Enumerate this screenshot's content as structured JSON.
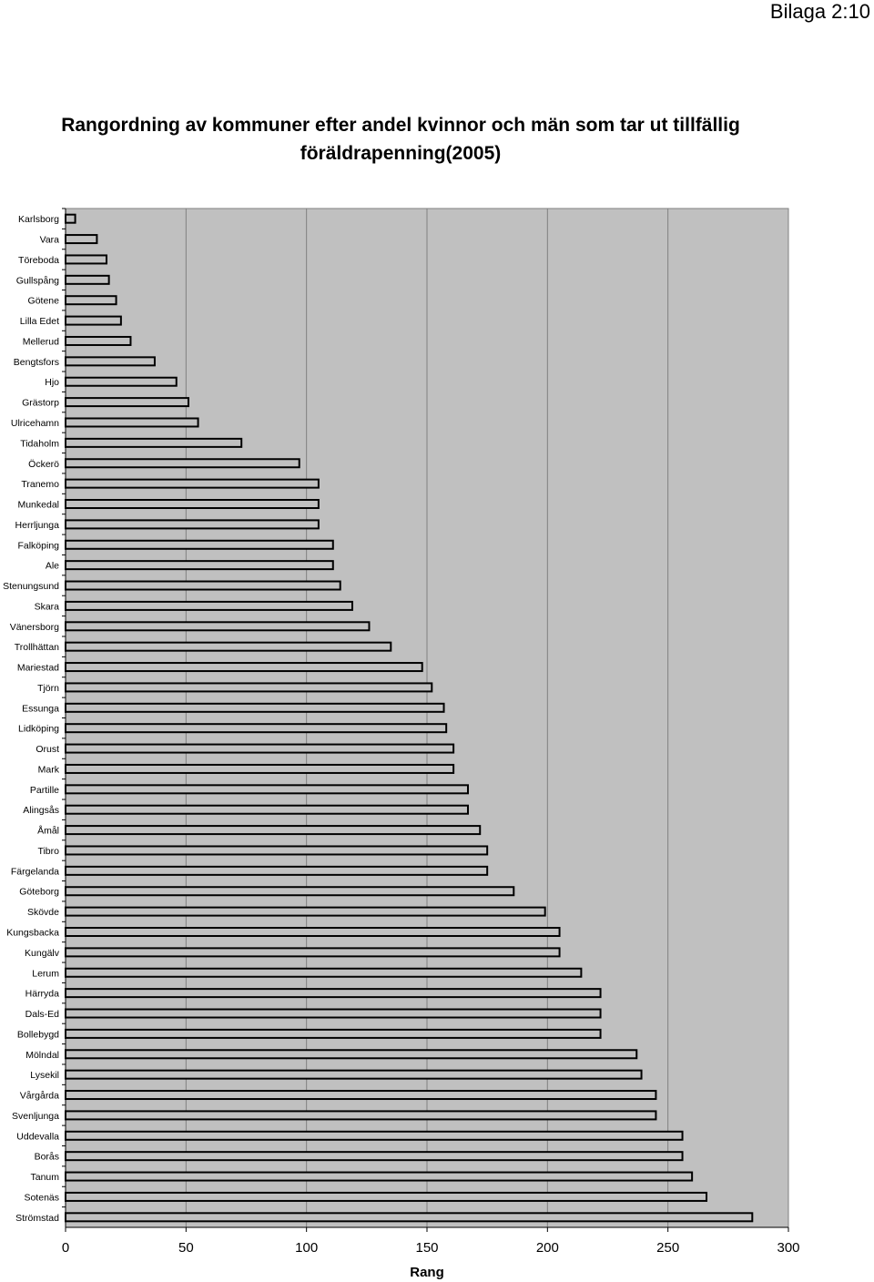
{
  "page_label": "Bilaga 2:10",
  "chart_data": {
    "type": "bar",
    "orientation": "horizontal",
    "title": "Rangordning av kommuner efter andel kvinnor och män som tar ut tillfällig föräldrapenning(2005)",
    "xlabel": "Rang",
    "ylabel": "",
    "xlim": [
      0,
      300
    ],
    "xticks": [
      "0",
      "50",
      "100",
      "150",
      "200",
      "250",
      "300"
    ],
    "grid": true,
    "legend": "none",
    "colors": {
      "plot_background": "#c0c0c0",
      "bar_fill": "#c0c0c0",
      "bar_stroke": "#000000",
      "gridline": "#808080"
    },
    "categories": [
      "Karlsborg",
      "Vara",
      "Töreboda",
      "Gullspång",
      "Götene",
      "Lilla Edet",
      "Mellerud",
      "Bengtsfors",
      "Hjo",
      "Grästorp",
      "Ulricehamn",
      "Tidaholm",
      "Öckerö",
      "Tranemo",
      "Munkedal",
      "Herrljunga",
      "Falköping",
      "Ale",
      "Stenungsund",
      "Skara",
      "Vänersborg",
      "Trollhättan",
      "Mariestad",
      "Tjörn",
      "Essunga",
      "Lidköping",
      "Orust",
      "Mark",
      "Partille",
      "Alingsås",
      "Åmål",
      "Tibro",
      "Färgelanda",
      "Göteborg",
      "Skövde",
      "Kungsbacka",
      "Kungälv",
      "Lerum",
      "Härryda",
      "Dals-Ed",
      "Bollebygd",
      "Mölndal",
      "Lysekil",
      "Vårgårda",
      "Svenljunga",
      "Uddevalla",
      "Borås",
      "Tanum",
      "Sotenäs",
      "Strömstad"
    ],
    "values": [
      4,
      13,
      17,
      18,
      21,
      23,
      27,
      37,
      46,
      51,
      55,
      73,
      97,
      105,
      105,
      105,
      111,
      111,
      114,
      119,
      126,
      135,
      148,
      152,
      157,
      158,
      161,
      161,
      167,
      167,
      172,
      175,
      175,
      186,
      199,
      205,
      205,
      214,
      222,
      222,
      222,
      237,
      239,
      245,
      245,
      256,
      256,
      260,
      266,
      285
    ]
  }
}
